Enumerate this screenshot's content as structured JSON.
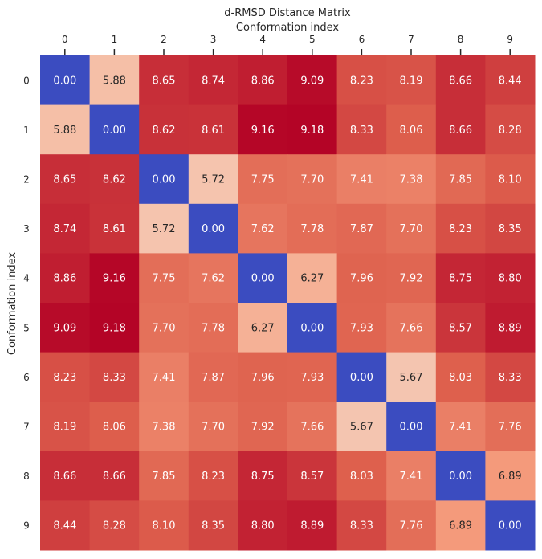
{
  "chart_data": {
    "type": "heatmap",
    "title": "d-RMSD Distance Matrix",
    "xlabel": "Conformation index",
    "ylabel": "Conformation index",
    "x_ticks": [
      "0",
      "1",
      "2",
      "3",
      "4",
      "5",
      "6",
      "7",
      "8",
      "9"
    ],
    "y_ticks": [
      "0",
      "1",
      "2",
      "3",
      "4",
      "5",
      "6",
      "7",
      "8",
      "9"
    ],
    "x_axis_position": "top",
    "colormap": "coolwarm",
    "value_range": [
      0.0,
      9.18
    ],
    "grid": false,
    "legend": "none",
    "values": [
      [
        0.0,
        5.88,
        8.65,
        8.74,
        8.86,
        9.09,
        8.23,
        8.19,
        8.66,
        8.44
      ],
      [
        5.88,
        0.0,
        8.62,
        8.61,
        9.16,
        9.18,
        8.33,
        8.06,
        8.66,
        8.28
      ],
      [
        8.65,
        8.62,
        0.0,
        5.72,
        7.75,
        7.7,
        7.41,
        7.38,
        7.85,
        8.1
      ],
      [
        8.74,
        8.61,
        5.72,
        0.0,
        7.62,
        7.78,
        7.87,
        7.7,
        8.23,
        8.35
      ],
      [
        8.86,
        9.16,
        7.75,
        7.62,
        0.0,
        6.27,
        7.96,
        7.92,
        8.75,
        8.8
      ],
      [
        9.09,
        9.18,
        7.7,
        7.78,
        6.27,
        0.0,
        7.93,
        7.66,
        8.57,
        8.89
      ],
      [
        8.23,
        8.33,
        7.41,
        7.87,
        7.96,
        7.93,
        0.0,
        5.67,
        8.03,
        8.33
      ],
      [
        8.19,
        8.06,
        7.38,
        7.7,
        7.92,
        7.66,
        5.67,
        0.0,
        7.41,
        7.76
      ],
      [
        8.66,
        8.66,
        7.85,
        8.23,
        8.75,
        8.57,
        8.03,
        7.41,
        0.0,
        6.89
      ],
      [
        8.44,
        8.28,
        8.1,
        8.35,
        8.8,
        8.89,
        8.33,
        7.76,
        6.89,
        0.0
      ]
    ],
    "labels": [
      [
        "0.00",
        "5.88",
        "8.65",
        "8.74",
        "8.86",
        "9.09",
        "8.23",
        "8.19",
        "8.66",
        "8.44"
      ],
      [
        "5.88",
        "0.00",
        "8.62",
        "8.61",
        "9.16",
        "9.18",
        "8.33",
        "8.06",
        "8.66",
        "8.28"
      ],
      [
        "8.65",
        "8.62",
        "0.00",
        "5.72",
        "7.75",
        "7.70",
        "7.41",
        "7.38",
        "7.85",
        "8.10"
      ],
      [
        "8.74",
        "8.61",
        "5.72",
        "0.00",
        "7.62",
        "7.78",
        "7.87",
        "7.70",
        "8.23",
        "8.35"
      ],
      [
        "8.86",
        "9.16",
        "7.75",
        "7.62",
        "0.00",
        "6.27",
        "7.96",
        "7.92",
        "8.75",
        "8.80"
      ],
      [
        "9.09",
        "9.18",
        "7.70",
        "7.78",
        "6.27",
        "0.00",
        "7.93",
        "7.66",
        "8.57",
        "8.89"
      ],
      [
        "8.23",
        "8.33",
        "7.41",
        "7.87",
        "7.96",
        "7.93",
        "0.00",
        "5.67",
        "8.03",
        "8.33"
      ],
      [
        "8.19",
        "8.06",
        "7.38",
        "7.70",
        "7.92",
        "7.66",
        "5.67",
        "0.00",
        "7.41",
        "7.76"
      ],
      [
        "8.66",
        "8.66",
        "7.85",
        "8.23",
        "8.75",
        "8.57",
        "8.03",
        "7.41",
        "0.00",
        "6.89"
      ],
      [
        "8.44",
        "8.28",
        "8.10",
        "8.35",
        "8.80",
        "8.89",
        "8.33",
        "7.76",
        "6.89",
        "0.00"
      ]
    ]
  }
}
